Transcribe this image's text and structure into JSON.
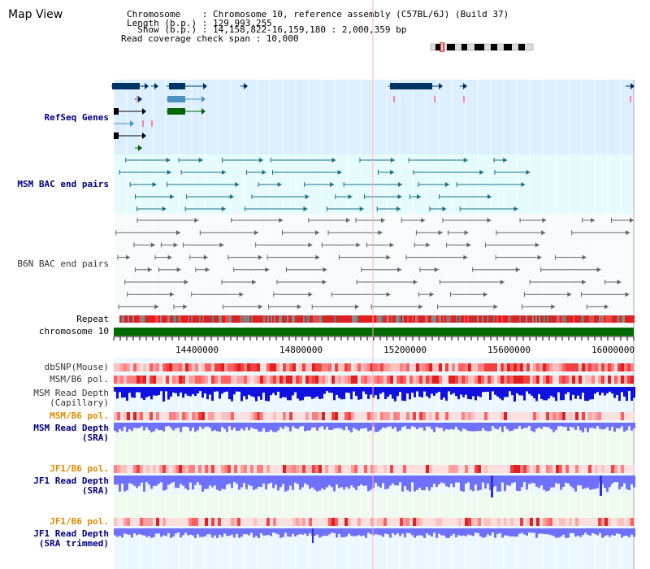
{
  "header": {
    "title": "Map View",
    "chromosome_line": "Chromosome    : Chromosome 10, reference assembly (C57BL/6J) (Build 37)",
    "length_line": "Length (b.p.) : 129,993,255",
    "show_line": "  Show (b.p.) : 14,158,822-16,159,180 : 2,000,359 bp",
    "coverage_line": "Read coverage check span : 10,000"
  },
  "tracks": {
    "refseq": "RefSeq Genes",
    "msm_bac": "MSM BAC end pairs",
    "b6n_bac": "B6N BAC end pairs",
    "repeat": "Repeat",
    "chromosome": "chromosome 10",
    "dbsnp": "dbSNP(Mouse)",
    "msm_pol": "MSM/B6 pol.",
    "msm_depth_cap_1": "MSM Read Depth",
    "msm_depth_cap_2": "(Capillary)",
    "msm_pol2": "MSM/B6 pol.",
    "msm_depth_sra_1": "MSM Read Depth",
    "msm_depth_sra_2": "(SRA)",
    "jf1_pol": "JF1/B6 pol.",
    "jf1_depth_1": "JF1 Read Depth",
    "jf1_depth_2": "(SRA)",
    "jf1_pol2": "JF1/B6 pol.",
    "jf1_trim_1": "JF1 Read Depth",
    "jf1_trim_2": "(SRA trimmed)"
  },
  "axis": {
    "ticks": [
      "14400000",
      "14800000",
      "15200000",
      "15600000",
      "16000000"
    ]
  },
  "colors": {
    "refseq_bg": "#dcefff",
    "msm_bac_bg": "#e6fbfb",
    "lower_bg": "#ecf8ff",
    "repeat_red": "#e02020",
    "chromosome_green": "#006a00",
    "depth_blue": "#1010e0",
    "depth_light": "#7070ff",
    "navy_label": "#000080",
    "orange_label": "#e08a00"
  }
}
